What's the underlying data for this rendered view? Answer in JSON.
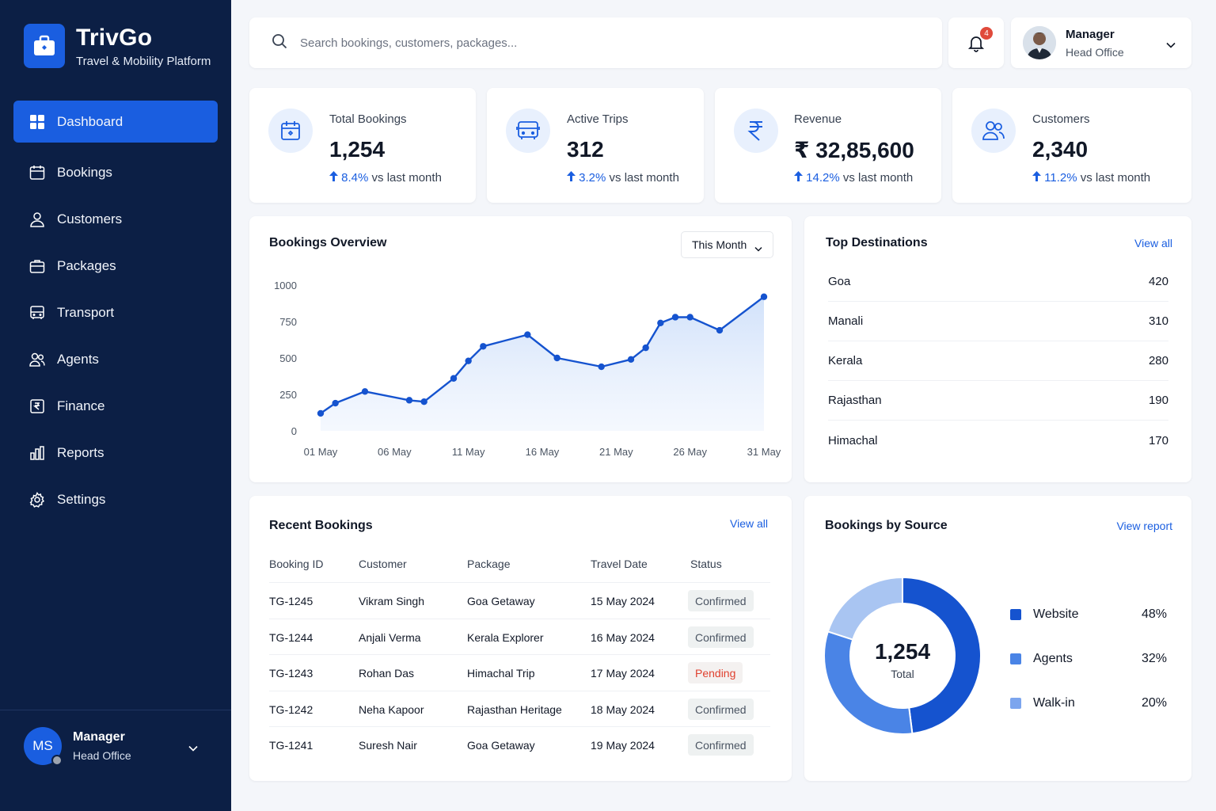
{
  "brand": {
    "name": "TrivGo",
    "tagline": "Travel & Mobility Platform"
  },
  "nav": [
    {
      "label": "Dashboard",
      "icon": "grid-icon",
      "active": true
    },
    {
      "label": "Bookings",
      "icon": "calendar-icon"
    },
    {
      "label": "Customers",
      "icon": "user-icon"
    },
    {
      "label": "Packages",
      "icon": "briefcase-icon"
    },
    {
      "label": "Transport",
      "icon": "bus-icon"
    },
    {
      "label": "Agents",
      "icon": "users-icon"
    },
    {
      "label": "Finance",
      "icon": "rupee-doc-icon"
    },
    {
      "label": "Reports",
      "icon": "bar-chart-icon"
    },
    {
      "label": "Settings",
      "icon": "gear-icon"
    }
  ],
  "sidebar_user": {
    "initials": "MS",
    "name": "Manager",
    "role": "Head Office"
  },
  "search": {
    "placeholder": "Search bookings, customers, packages..."
  },
  "notifications": {
    "count": "4"
  },
  "top_user": {
    "name": "Manager",
    "role": "Head Office"
  },
  "stats": [
    {
      "label": "Total Bookings",
      "value": "1,254",
      "delta": "8.4%",
      "suffix": "vs last month",
      "icon": "calendar-icon"
    },
    {
      "label": "Active Trips",
      "value": "312",
      "delta": "3.2%",
      "suffix": "vs last month",
      "icon": "bus-icon"
    },
    {
      "label": "Revenue",
      "value": "₹ 32,85,600",
      "delta": "14.2%",
      "suffix": "vs last month",
      "icon": "rupee-icon"
    },
    {
      "label": "Customers",
      "value": "2,340",
      "delta": "11.2%",
      "suffix": "vs last month",
      "icon": "users-icon"
    }
  ],
  "overview": {
    "title": "Bookings Overview",
    "period": "This Month",
    "chart_data": {
      "type": "area",
      "x": [
        "01 May",
        "02 May",
        "04 May",
        "07 May",
        "08 May",
        "10 May",
        "11 May",
        "12 May",
        "15 May",
        "17 May",
        "20 May",
        "22 May",
        "23 May",
        "24 May",
        "25 May",
        "26 May",
        "28 May",
        "31 May"
      ],
      "values": [
        120,
        190,
        270,
        210,
        200,
        360,
        480,
        580,
        660,
        500,
        440,
        490,
        570,
        740,
        780,
        780,
        690,
        920
      ],
      "xticks": [
        "01 May",
        "06 May",
        "11 May",
        "16 May",
        "21 May",
        "26 May",
        "31 May"
      ],
      "yticks": [
        "0",
        "250",
        "500",
        "750",
        "1000"
      ],
      "ylim": [
        0,
        1000
      ]
    }
  },
  "destinations": {
    "title": "Top Destinations",
    "link": "View all",
    "items": [
      {
        "name": "Goa",
        "count": "420"
      },
      {
        "name": "Manali",
        "count": "310"
      },
      {
        "name": "Kerala",
        "count": "280"
      },
      {
        "name": "Rajasthan",
        "count": "190"
      },
      {
        "name": "Himachal",
        "count": "170"
      }
    ]
  },
  "recent": {
    "title": "Recent Bookings",
    "link": "View all",
    "columns": [
      "Booking ID",
      "Customer",
      "Package",
      "Travel Date",
      "Status"
    ],
    "rows": [
      {
        "id": "TG-1245",
        "customer": "Vikram Singh",
        "package": "Goa Getaway",
        "date": "15 May 2024",
        "status": "Confirmed"
      },
      {
        "id": "TG-1244",
        "customer": "Anjali Verma",
        "package": "Kerala Explorer",
        "date": "16 May 2024",
        "status": "Confirmed"
      },
      {
        "id": "TG-1243",
        "customer": "Rohan Das",
        "package": "Himachal Trip",
        "date": "17 May 2024",
        "status": "Pending"
      },
      {
        "id": "TG-1242",
        "customer": "Neha Kapoor",
        "package": "Rajasthan Heritage",
        "date": "18 May 2024",
        "status": "Confirmed"
      },
      {
        "id": "TG-1241",
        "customer": "Suresh Nair",
        "package": "Goa Getaway",
        "date": "19 May 2024",
        "status": "Confirmed"
      }
    ]
  },
  "source": {
    "title": "Bookings by Source",
    "link": "View report",
    "total": "1,254",
    "total_label": "Total",
    "chart_data": {
      "type": "pie",
      "labels": [
        "Website",
        "Agents",
        "Walk-in"
      ],
      "values": [
        48,
        32,
        20
      ],
      "display": [
        "48%",
        "32%",
        "20%"
      ],
      "colors": [
        "#1553cf",
        "#4a84e6",
        "#a9c5f2"
      ]
    }
  },
  "colors": {
    "sidebar": "#0c1f45",
    "accent": "#1a5ee0",
    "pending": "#e0412f"
  }
}
